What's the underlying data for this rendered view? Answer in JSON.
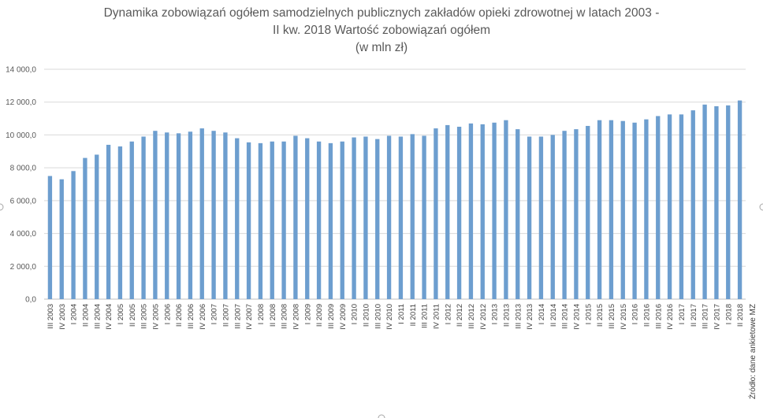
{
  "chart_data": {
    "type": "bar",
    "title": [
      "Dynamika zobowiązań ogółem samodzielnych publicznych zakładów opieki zdrowotnej w latach 2003 -",
      "II kw. 2018 Wartość zobowiązań ogółem",
      "(w mln zł)"
    ],
    "ylim": [
      0,
      14000
    ],
    "y_ticks": [
      0,
      2000,
      4000,
      6000,
      8000,
      10000,
      12000,
      14000
    ],
    "y_tick_labels": [
      "0,0",
      "2 000,0",
      "4 000,0",
      "6 000,0",
      "8 000,0",
      "10 000,0",
      "12 000,0",
      "14 000,0"
    ],
    "grid": true,
    "bar_color": "#6d9ecf",
    "source_note": "Źródło: dane ankietowe MZ",
    "categories": [
      "III 2003",
      "IV 2003",
      "I 2004",
      "II 2004",
      "III 2004",
      "IV 2004",
      "I 2005",
      "II 2005",
      "III 2005",
      "IV 2005",
      "I 2006",
      "II 2006",
      "III 2006",
      "IV 2006",
      "I 2007",
      "II 2007",
      "III 2007",
      "IV 2007",
      "I 2008",
      "II 2008",
      "III 2008",
      "IV 2008",
      "I 2009",
      "II 2009",
      "III 2009",
      "IV 2009",
      "I 2010",
      "II 2010",
      "III 2010",
      "IV 2010",
      "I 2011",
      "II 2011",
      "III 2011",
      "IV 2011",
      "I 2012",
      "II 2012",
      "III 2012",
      "IV 2012",
      "I 2013",
      "II 2013",
      "III 2013",
      "IV 2013",
      "I 2014",
      "II 2014",
      "III 2014",
      "IV 2014",
      "I 2015",
      "II 2015",
      "III 2015",
      "IV 2015",
      "I 2016",
      "II 2016",
      "III 2016",
      "IV 2016",
      "I 2017",
      "II 2017",
      "III 2017",
      "IV 2017",
      "I 2018",
      "II 2018"
    ],
    "values": [
      7500,
      7300,
      7800,
      8600,
      8800,
      9400,
      9300,
      9600,
      9900,
      10250,
      10150,
      10100,
      10200,
      10400,
      10250,
      10150,
      9800,
      9550,
      9500,
      9600,
      9600,
      9950,
      9800,
      9600,
      9500,
      9600,
      9850,
      9900,
      9750,
      9950,
      9900,
      10050,
      9950,
      10400,
      10600,
      10500,
      10700,
      10650,
      10750,
      10900,
      10350,
      9900,
      9900,
      10000,
      10250,
      10350,
      10550,
      10900,
      10900,
      10850,
      10750,
      10950,
      11150,
      11250,
      11250,
      11500,
      11850,
      11750,
      11800,
      12100
    ]
  }
}
